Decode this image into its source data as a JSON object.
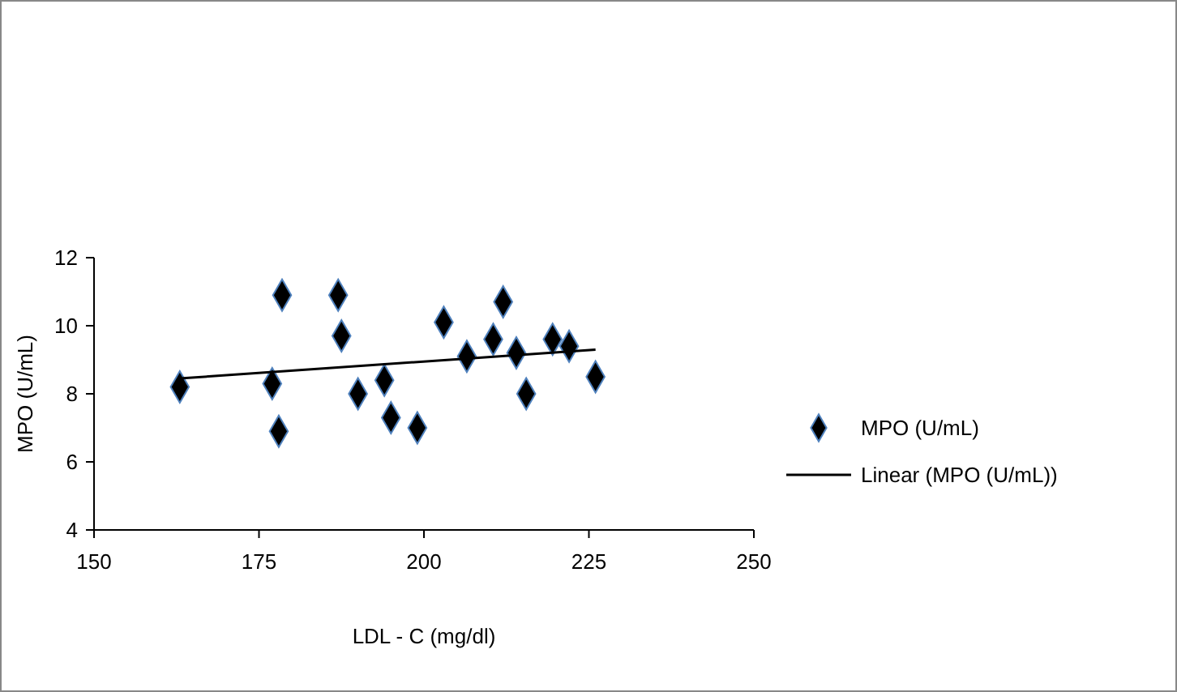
{
  "chart_data": {
    "type": "scatter",
    "xlabel": "LDL - C (mg/dl)",
    "ylabel": "MPO (U/mL)",
    "xlim": [
      150,
      250
    ],
    "xticks": [
      150,
      175,
      200,
      225,
      250
    ],
    "ylim": [
      4,
      12
    ],
    "yticks": [
      4,
      6,
      8,
      10,
      12
    ],
    "grid": false,
    "legend": "right",
    "marker": "diamond",
    "series": [
      {
        "name": "MPO (U/mL)",
        "color": "#000000",
        "x": [
          163,
          177,
          178,
          178.5,
          187,
          187.5,
          190,
          194,
          195,
          199,
          203,
          206.5,
          210.5,
          212,
          214,
          215.5,
          219.5,
          222,
          226
        ],
        "values": [
          8.2,
          8.3,
          6.9,
          10.9,
          10.9,
          9.7,
          8.0,
          8.4,
          7.3,
          7.0,
          10.1,
          9.1,
          9.6,
          10.7,
          9.2,
          8.0,
          9.6,
          9.4,
          8.5
        ]
      },
      {
        "name": "Linear (MPO (U/mL))",
        "type": "line",
        "color": "#000000",
        "marker": "none",
        "line_style": "solid",
        "x": [
          163,
          226
        ],
        "values": [
          8.45,
          9.3
        ]
      }
    ]
  }
}
